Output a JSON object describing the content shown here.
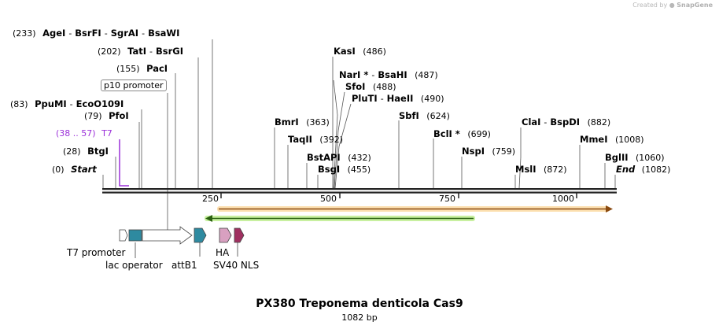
{
  "credit": {
    "prefix": "Created by",
    "brand": "SnapGene"
  },
  "title": "PX380 Treponema denticola Cas9",
  "length_label": "1082 bp",
  "map": {
    "start_label": "Start",
    "end_label": "End",
    "start_pos": "(0)",
    "end_pos": "(1082)"
  },
  "ticks": [
    "250",
    "500",
    "750",
    "1000"
  ],
  "sites": [
    {
      "row": [
        {
          "pos": "(233)"
        },
        {
          "name": "AgeI"
        },
        {
          "name": "BsrFI"
        },
        {
          "name": "SgrAI"
        },
        {
          "name": "BsaWI"
        }
      ]
    },
    {
      "row": [
        {
          "pos": "(202)"
        },
        {
          "name": "TatI"
        },
        {
          "name": "BsrGI"
        }
      ]
    },
    {
      "row": [
        {
          "pos": "(155)"
        },
        {
          "name": "PacI"
        }
      ]
    },
    {
      "row": [
        {
          "pos": "(83)"
        },
        {
          "name": "PpuMI"
        },
        {
          "name": "EcoO109I"
        }
      ]
    },
    {
      "row": [
        {
          "pos": "(79)"
        },
        {
          "name": "PfoI"
        }
      ]
    },
    {
      "row": [
        {
          "pos": "(28)"
        },
        {
          "name": "BtgI"
        }
      ]
    },
    {
      "row": [
        {
          "name": "KasI"
        },
        {
          "pos": "(486)"
        }
      ]
    },
    {
      "row": [
        {
          "name": "NarI *"
        },
        {
          "name": "BsaHI"
        },
        {
          "pos": "(487)"
        }
      ]
    },
    {
      "row": [
        {
          "name": "SfoI"
        },
        {
          "pos": "(488)"
        }
      ]
    },
    {
      "row": [
        {
          "name": "PluTI"
        },
        {
          "name": "HaeII"
        },
        {
          "pos": "(490)"
        }
      ]
    },
    {
      "row": [
        {
          "name": "BmrI"
        },
        {
          "pos": "(363)"
        }
      ]
    },
    {
      "row": [
        {
          "name": "TaqII"
        },
        {
          "pos": "(392)"
        }
      ]
    },
    {
      "row": [
        {
          "name": "BstAPI"
        },
        {
          "pos": "(432)"
        }
      ]
    },
    {
      "row": [
        {
          "name": "BsgI"
        },
        {
          "pos": "(455)"
        }
      ]
    },
    {
      "row": [
        {
          "name": "SbfI"
        },
        {
          "pos": "(624)"
        }
      ]
    },
    {
      "row": [
        {
          "name": "BclI *"
        },
        {
          "pos": "(699)"
        }
      ]
    },
    {
      "row": [
        {
          "name": "NspI"
        },
        {
          "pos": "(759)"
        }
      ]
    },
    {
      "row": [
        {
          "name": "ClaI"
        },
        {
          "name": "BspDI"
        },
        {
          "pos": "(882)"
        }
      ]
    },
    {
      "row": [
        {
          "name": "MslI"
        },
        {
          "pos": "(872)"
        }
      ]
    },
    {
      "row": [
        {
          "name": "MmeI"
        },
        {
          "pos": "(1008)"
        }
      ]
    },
    {
      "row": [
        {
          "name": "BglII"
        },
        {
          "pos": "(1060)"
        }
      ]
    }
  ],
  "primer": {
    "range": "(38 .. 57)",
    "name": "T7"
  },
  "p10_promoter": "p10 promoter",
  "features": [
    {
      "name": "T7 promoter"
    },
    {
      "name": "lac operator"
    },
    {
      "name": "attB1"
    },
    {
      "name": "HA"
    },
    {
      "name": "SV40 NLS"
    }
  ],
  "colors": {
    "orf_orange": "#f0a030",
    "orf_green": "#80d040",
    "feature_teal": "#2e8aa0",
    "feature_pink": "#d8a0c0",
    "feature_magenta": "#a03060",
    "primer_purple": "#9b30d9"
  }
}
